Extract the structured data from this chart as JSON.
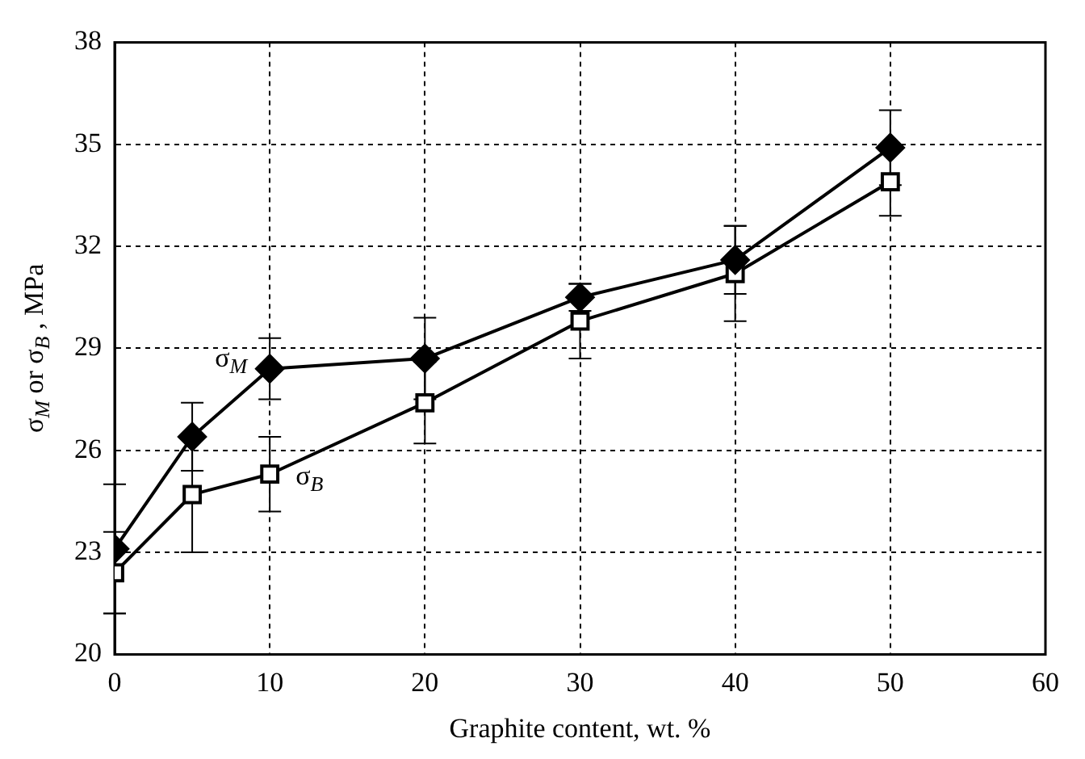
{
  "chart_data": {
    "type": "line",
    "xlabel": "Graphite content, wt. %",
    "ylabel": "σ$_{M}$ or σ$_{B}$ , MPa",
    "x": [
      0,
      5,
      10,
      20,
      30,
      40,
      50
    ],
    "series": [
      {
        "color": "#000000",
        "marker": "diamond",
        "values": [
          23.1,
          26.4,
          28.4,
          28.7,
          30.5,
          31.6,
          34.9
        ],
        "errors": [
          1.9,
          1.0,
          0.9,
          1.2,
          0.4,
          1.0,
          1.1
        ]
      },
      {
        "color": "#000000",
        "marker": "square",
        "values": [
          22.4,
          24.7,
          25.3,
          27.4,
          29.8,
          31.2,
          33.9
        ],
        "errors": [
          1.2,
          1.7,
          1.1,
          1.2,
          1.1,
          1.4,
          1.0
        ]
      }
    ],
    "annotations": [
      {
        "text": "σ$_{M}$",
        "x": 10,
        "y": 28.4
      },
      {
        "text": "σ$_{B}$",
        "x": 10,
        "y": 25.3
      }
    ],
    "xlim": [
      0,
      60
    ],
    "xticks": [
      0,
      10,
      20,
      30,
      40,
      50,
      60
    ],
    "ylim": [
      20,
      38
    ],
    "yticks": [
      20,
      23,
      26,
      29,
      32,
      35,
      38
    ],
    "grid": true,
    "legend": false,
    "line_style": "solid"
  }
}
